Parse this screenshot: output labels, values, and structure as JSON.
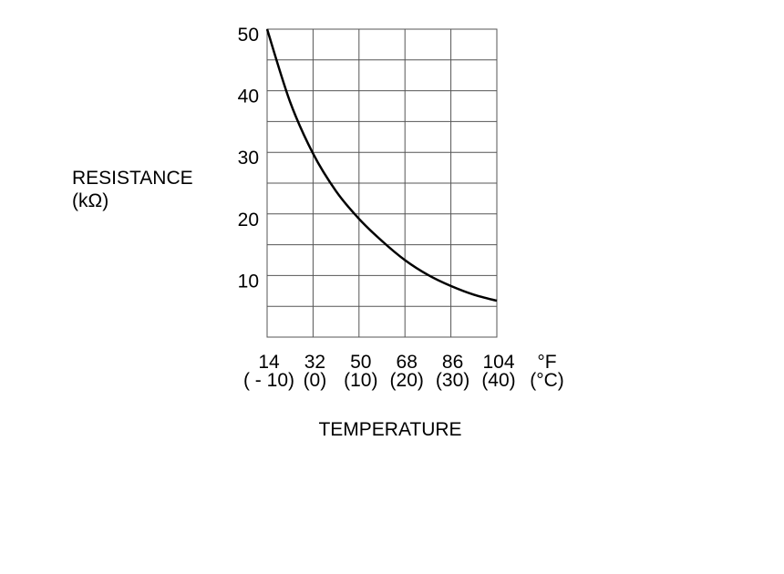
{
  "chart_data": {
    "type": "line",
    "ylabel": "RESISTANCE",
    "ylabel_unit": "(kΩ)",
    "xlabel": "TEMPERATURE",
    "x_unit_primary": "°F",
    "x_unit_secondary": "(°C)",
    "x_ticks": [
      {
        "f": 14,
        "f_label": "14",
        "c_label": "( - 10)"
      },
      {
        "f": 32,
        "f_label": "32",
        "c_label": "(0)"
      },
      {
        "f": 50,
        "f_label": "50",
        "c_label": "(10)"
      },
      {
        "f": 68,
        "f_label": "68",
        "c_label": "(20)"
      },
      {
        "f": 86,
        "f_label": "86",
        "c_label": "(30)"
      },
      {
        "f": 104,
        "f_label": "104",
        "c_label": "(40)"
      }
    ],
    "y_ticks": [
      {
        "value": 10,
        "label": "10"
      },
      {
        "value": 20,
        "label": "20"
      },
      {
        "value": 30,
        "label": "30"
      },
      {
        "value": 40,
        "label": "40"
      },
      {
        "value": 50,
        "label": "50"
      }
    ],
    "xlim": [
      14,
      104
    ],
    "ylim": [
      0,
      50
    ],
    "y_grid_step": 5,
    "grid": true,
    "series": [
      {
        "x": [
          14,
          23,
          32,
          41,
          50,
          59,
          68,
          77,
          86,
          95,
          104
        ],
        "y": [
          50,
          38.2,
          29.8,
          23.7,
          19.2,
          15.6,
          12.5,
          10.1,
          8.3,
          6.9,
          5.9
        ]
      }
    ]
  }
}
